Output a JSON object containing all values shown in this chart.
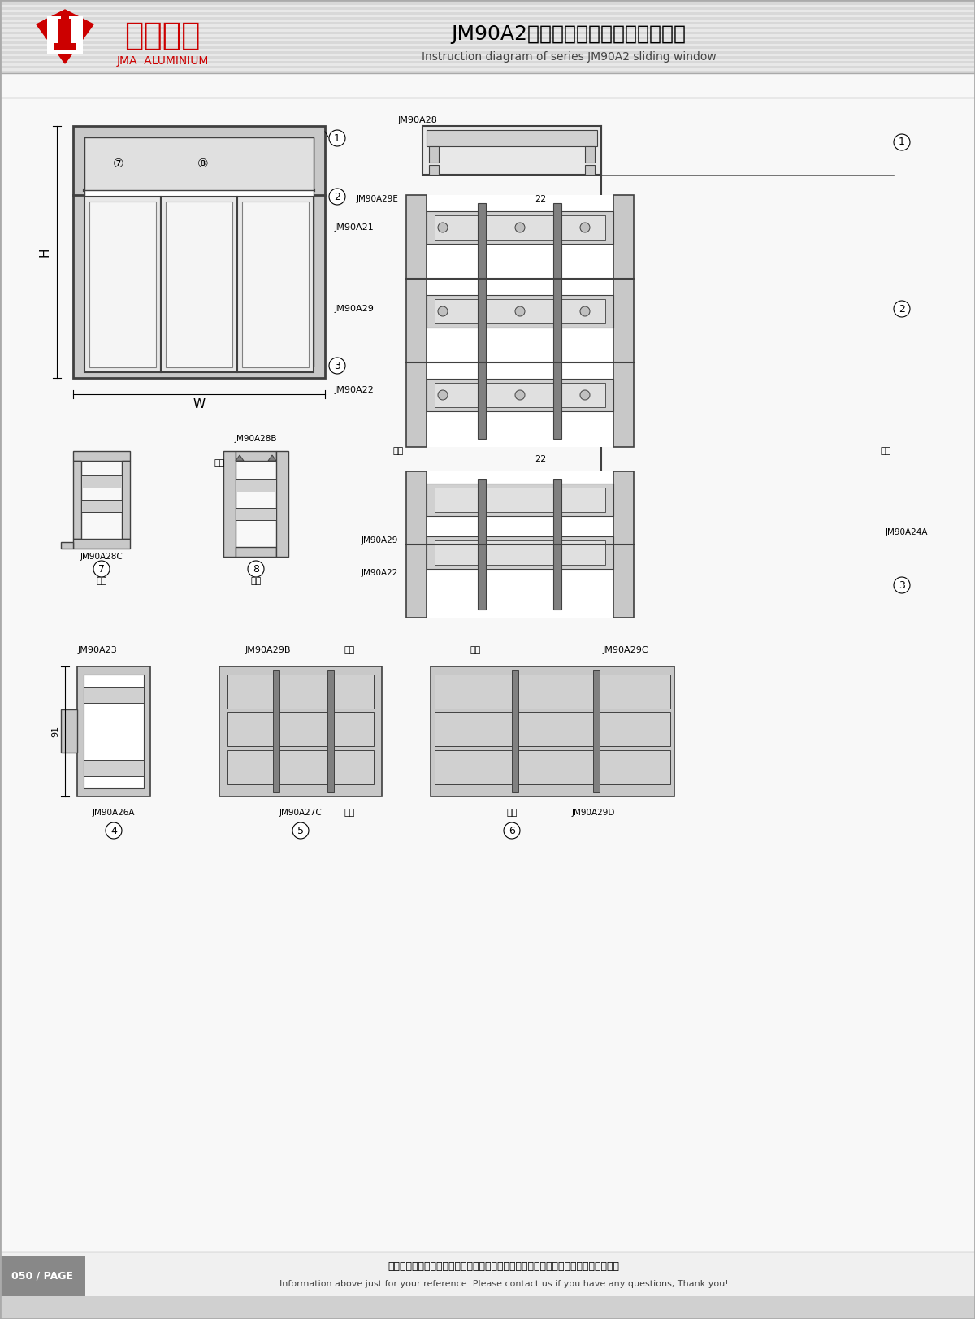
{
  "title_cn": "JM90A2系列三轨推拉门窗带纱结构图",
  "title_en": "Instruction diagram of series JM90A2 sliding window",
  "footer_cn": "图中所示型材截面、装配、编号、尺寸及重量仅供参考。如有疑问，请向本公司查询。",
  "footer_en": "Information above just for your reference. Please contact us if you have any questions, Thank you!",
  "page_num": "050 / PAGE",
  "bg_color": "#f0f0f0",
  "white": "#ffffff",
  "dark_gray": "#404040",
  "mid_gray": "#808080",
  "light_gray": "#c8c8c8",
  "red": "#cc0000",
  "header_bg": "#d8d8d8",
  "footer_bg": "#888888"
}
